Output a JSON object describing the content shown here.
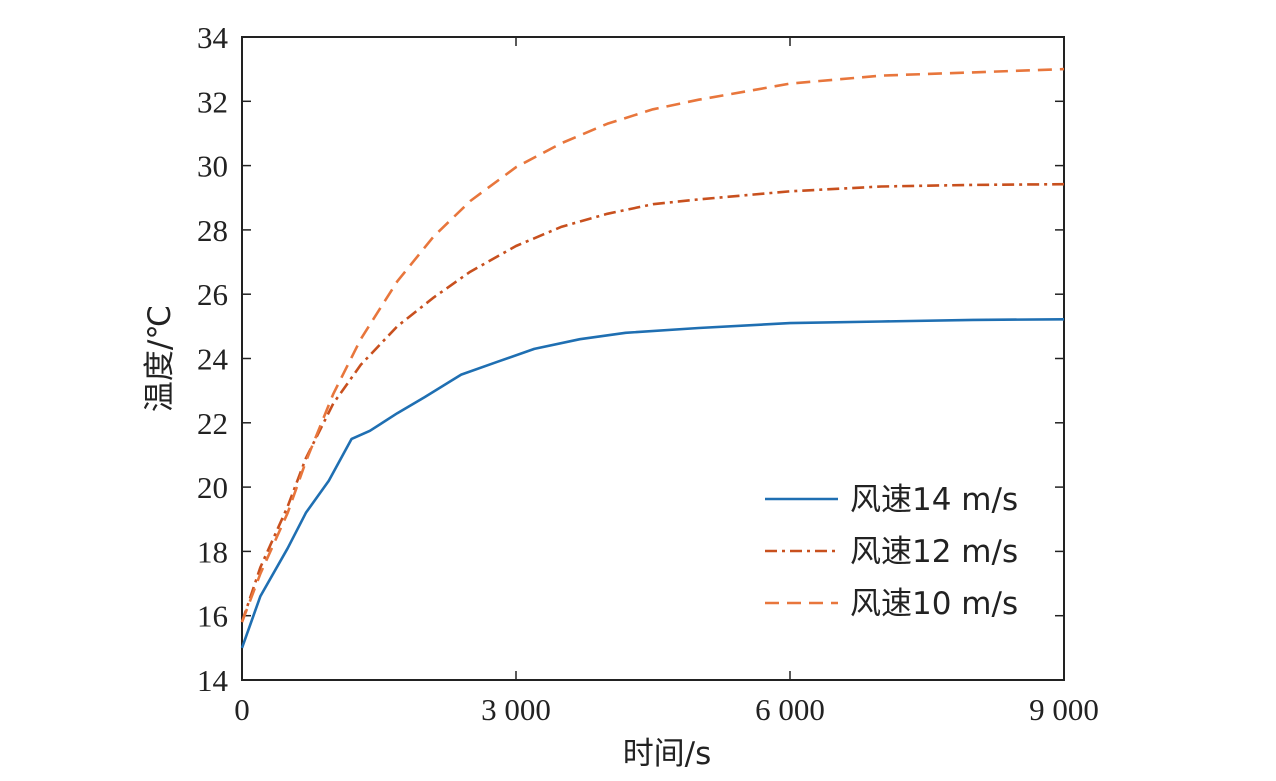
{
  "chart_data": {
    "type": "line",
    "xlabel": "时间/s",
    "ylabel": "温度/℃",
    "xlim": [
      0,
      9000
    ],
    "ylim": [
      14,
      34
    ],
    "xticks": [
      0,
      3000,
      6000,
      9000
    ],
    "xtick_labels": [
      "0",
      "3 000",
      "6 000",
      "9 000"
    ],
    "yticks": [
      14,
      16,
      18,
      20,
      22,
      24,
      26,
      28,
      30,
      32,
      34
    ],
    "ytick_labels": [
      "14",
      "16",
      "18",
      "20",
      "22",
      "24",
      "26",
      "28",
      "30",
      "32",
      "34"
    ],
    "grid": false,
    "legend_position": "bottom-right",
    "series": [
      {
        "name": "风速14 m/s",
        "color": "#1f6fb2",
        "dash": "solid",
        "x": [
          0,
          200,
          500,
          700,
          950,
          1200,
          1400,
          1700,
          2000,
          2400,
          2800,
          3200,
          3700,
          4200,
          5000,
          6000,
          7000,
          8000,
          9000
        ],
        "y": [
          15.0,
          16.6,
          18.1,
          19.2,
          20.2,
          21.5,
          21.75,
          22.3,
          22.8,
          23.5,
          23.9,
          24.3,
          24.6,
          24.8,
          24.95,
          25.1,
          25.15,
          25.2,
          25.22
        ]
      },
      {
        "name": "风速12 m/s",
        "color": "#c8501e",
        "dash": "dashdot",
        "x": [
          0,
          200,
          500,
          700,
          1000,
          1300,
          1700,
          2100,
          2500,
          3000,
          3500,
          4000,
          4500,
          5000,
          6000,
          7000,
          8000,
          9000
        ],
        "y": [
          15.8,
          17.5,
          19.4,
          20.9,
          22.6,
          23.8,
          25.0,
          25.9,
          26.7,
          27.5,
          28.1,
          28.5,
          28.8,
          28.95,
          29.2,
          29.35,
          29.4,
          29.42
        ]
      },
      {
        "name": "风速10 m/s",
        "color": "#e8763c",
        "dash": "dashed",
        "x": [
          0,
          200,
          500,
          700,
          1000,
          1300,
          1700,
          2100,
          2500,
          3000,
          3500,
          4000,
          4500,
          5000,
          5500,
          6000,
          7000,
          8000,
          9000
        ],
        "y": [
          15.8,
          17.3,
          19.2,
          20.8,
          22.9,
          24.6,
          26.4,
          27.8,
          28.9,
          29.95,
          30.7,
          31.3,
          31.75,
          32.05,
          32.3,
          32.55,
          32.8,
          32.9,
          33.0
        ]
      }
    ]
  }
}
